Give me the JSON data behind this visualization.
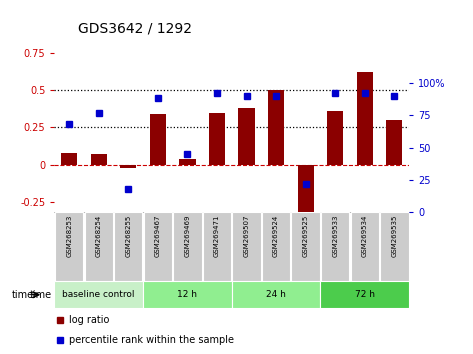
{
  "title": "GDS3642 / 1292",
  "samples": [
    "GSM268253",
    "GSM268254",
    "GSM268255",
    "GSM269467",
    "GSM269469",
    "GSM269471",
    "GSM269507",
    "GSM269524",
    "GSM269525",
    "GSM269533",
    "GSM269534",
    "GSM269535"
  ],
  "log_ratio": [
    0.08,
    0.07,
    -0.02,
    0.34,
    0.04,
    0.35,
    0.38,
    0.5,
    -0.32,
    0.36,
    0.62,
    0.3
  ],
  "percentile_rank": [
    68,
    77,
    18,
    88,
    45,
    92,
    90,
    90,
    22,
    92,
    92,
    90
  ],
  "bar_color": "#8B0000",
  "dot_color": "#0000CD",
  "ylim_left": [
    -0.32,
    0.82
  ],
  "ylim_right": [
    0,
    131
  ],
  "yticks_left": [
    -0.25,
    0.0,
    0.25,
    0.5,
    0.75
  ],
  "yticks_right": [
    0,
    25,
    50,
    75,
    100
  ],
  "hlines": [
    0.25,
    0.5
  ],
  "hline_zero_color": "#CC0000",
  "hline_dotted_color": "#000000",
  "time_group_data": [
    {
      "label": "baseline control",
      "start": 0,
      "end": 3,
      "color": "#c8f0c8"
    },
    {
      "label": "12 h",
      "start": 3,
      "end": 6,
      "color": "#90ee90"
    },
    {
      "label": "24 h",
      "start": 6,
      "end": 9,
      "color": "#90ee90"
    },
    {
      "label": "72 h",
      "start": 9,
      "end": 12,
      "color": "#4ccc4c"
    }
  ],
  "sample_box_color": "#cccccc",
  "legend_bar_label": "log ratio",
  "legend_dot_label": "percentile rank within the sample",
  "background_color": "#ffffff"
}
